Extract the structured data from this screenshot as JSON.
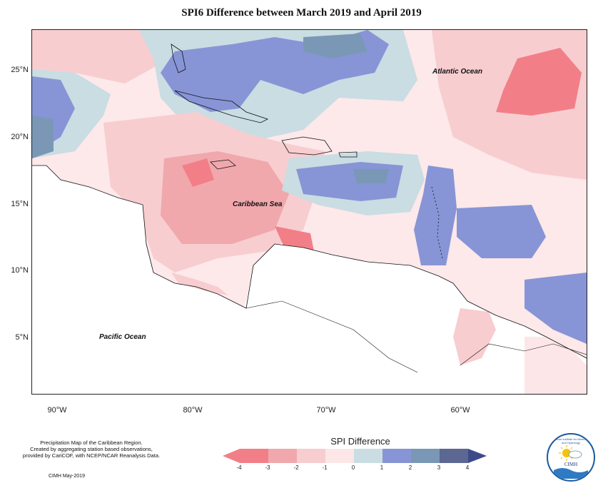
{
  "title": "SPI6 Difference between March 2019 and April 2019",
  "map": {
    "lat_labels": [
      "25°N",
      "20°N",
      "15°N",
      "10°N",
      "5°N"
    ],
    "lon_labels": [
      "90°W",
      "80°W",
      "70°W",
      "60°W"
    ],
    "ocean_labels": {
      "atlantic": "Atlantic Ocean",
      "caribbean": "Caribbean Sea",
      "pacific": "Pacific Ocean"
    }
  },
  "legend": {
    "title": "SPI Difference",
    "ticks": [
      "-4",
      "-3",
      "-2",
      "-1",
      "0",
      "1",
      "2",
      "3",
      "4"
    ],
    "colors": [
      "#f27f88",
      "#f0a8ad",
      "#f7cdd0",
      "#fce6e8",
      "#c9dde3",
      "#8795d6",
      "#7a98b5",
      "#5c6792"
    ]
  },
  "notes": {
    "line1": "Precipitation Map of the Caribbean Region.",
    "line2": "Created by aggregating station based observations,",
    "line3": "provided by CariCOF, with NCEP/NCAR Reanalysis Data.",
    "credit": "CIMH May-2019"
  },
  "logo": {
    "name": "CIMH",
    "ring": "Caribbean Institute for Meteorology and Hydrology"
  }
}
